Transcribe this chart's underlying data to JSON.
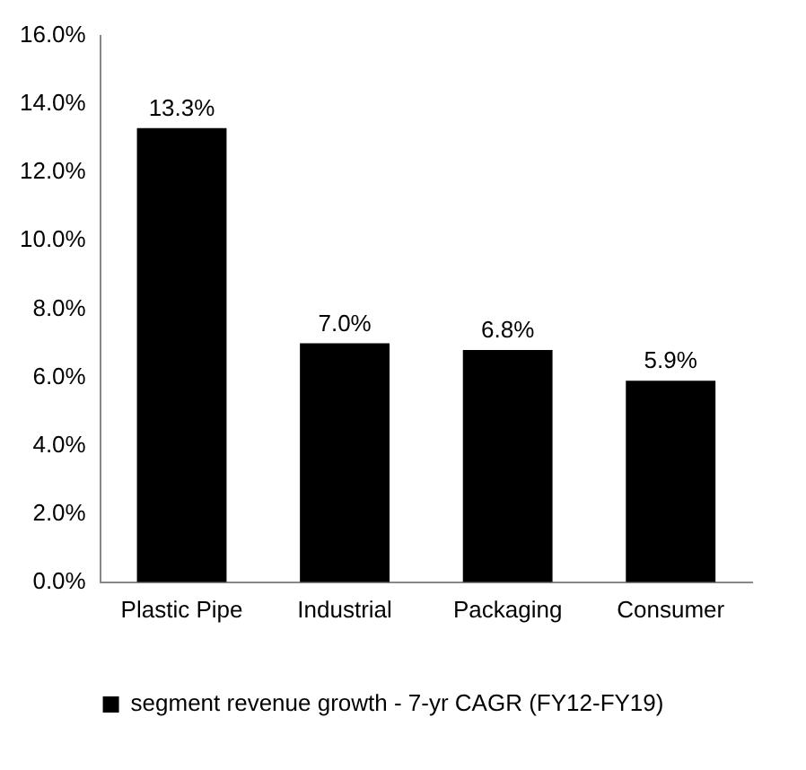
{
  "chart_data": {
    "type": "bar",
    "categories": [
      "Plastic Pipe",
      "Industrial",
      "Packaging",
      "Consumer"
    ],
    "series": [
      {
        "name": "segment revenue growth - 7-yr CAGR (FY12-FY19)",
        "color": "#000000",
        "values": [
          13.3,
          7.0,
          6.8,
          5.9
        ],
        "value_labels": [
          "13.3%",
          "7.0%",
          "6.8%",
          "5.9%"
        ]
      }
    ],
    "ylim": [
      0,
      16
    ],
    "yticks": [
      {
        "value": 0,
        "label": "0.0%"
      },
      {
        "value": 2,
        "label": "2.0%"
      },
      {
        "value": 4,
        "label": "4.0%"
      },
      {
        "value": 6,
        "label": "6.0%"
      },
      {
        "value": 8,
        "label": "8.0%"
      },
      {
        "value": 10,
        "label": "10.0%"
      },
      {
        "value": 12,
        "label": "12.0%"
      },
      {
        "value": 14,
        "label": "14.0%"
      },
      {
        "value": 16,
        "label": "16.0%"
      }
    ],
    "grid": false,
    "legend": "bottom"
  }
}
